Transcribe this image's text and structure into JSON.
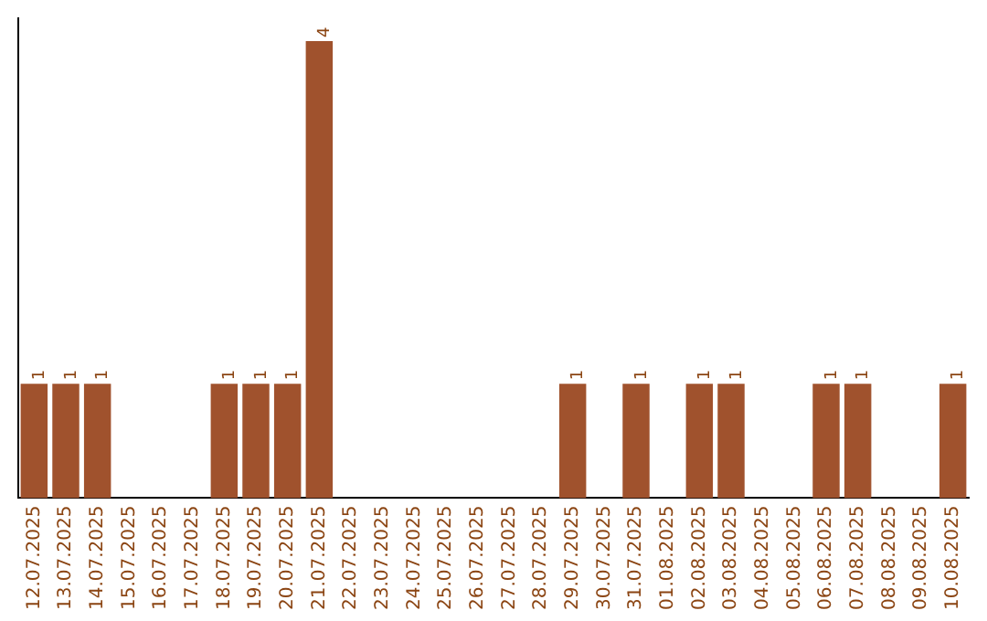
{
  "chart_data": {
    "type": "bar",
    "categories": [
      "12.07.2025",
      "13.07.2025",
      "14.07.2025",
      "15.07.2025",
      "16.07.2025",
      "17.07.2025",
      "18.07.2025",
      "19.07.2025",
      "20.07.2025",
      "21.07.2025",
      "22.07.2025",
      "23.07.2025",
      "24.07.2025",
      "25.07.2025",
      "26.07.2025",
      "27.07.2025",
      "28.07.2025",
      "29.07.2025",
      "30.07.2025",
      "31.07.2025",
      "01.08.2025",
      "02.08.2025",
      "03.08.2025",
      "04.08.2025",
      "05.08.2025",
      "06.08.2025",
      "07.08.2025",
      "08.08.2025",
      "09.08.2025",
      "10.08.2025"
    ],
    "values": [
      1,
      1,
      1,
      0,
      0,
      0,
      1,
      1,
      1,
      4,
      0,
      0,
      0,
      0,
      0,
      0,
      0,
      1,
      0,
      1,
      0,
      1,
      1,
      0,
      0,
      1,
      1,
      0,
      0,
      1
    ],
    "value_labels": [
      "1",
      "1",
      "1",
      null,
      null,
      null,
      "1",
      "1",
      "1",
      "4",
      null,
      null,
      null,
      null,
      null,
      null,
      null,
      "1",
      null,
      "1",
      null,
      "1",
      "1",
      null,
      null,
      "1",
      "1",
      null,
      null,
      "1"
    ],
    "color": "#a0522d",
    "ylim": [
      0,
      4.2
    ],
    "tick_labels": "x",
    "grid": false,
    "legend": false
  }
}
